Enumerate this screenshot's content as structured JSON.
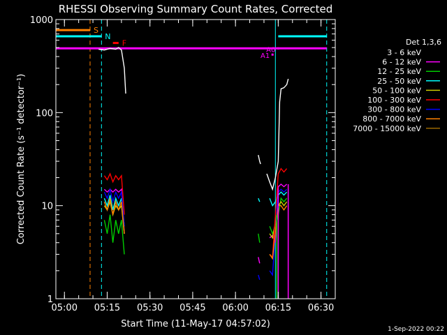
{
  "chart_data": {
    "type": "line",
    "title": "RHESSI Observing Summary Count Rates, Corrected",
    "xlabel": "Start Time (11-May-17 04:57:02)",
    "ylabel": "Corrected Count Rate (s⁻¹ detector⁻¹)",
    "yscale": "log",
    "xlim": [
      "04:57",
      "06:35"
    ],
    "ylim": [
      1,
      1000
    ],
    "x_ticks": [
      "05:00",
      "05:15",
      "05:30",
      "05:45",
      "06:00",
      "06:15",
      "06:30"
    ],
    "y_ticks": [
      "1",
      "10",
      "100",
      "1000"
    ],
    "footer": "1-Sep-2022 00:22",
    "legend": {
      "placement": "right",
      "title": "Det 1,3,6",
      "entries": [
        {
          "label": "3 - 6 keV",
          "color": "#000000"
        },
        {
          "label": "6 - 12 keV",
          "color": "#ff00ff"
        },
        {
          "label": "12 - 25 keV",
          "color": "#00cc00"
        },
        {
          "label": "25 - 50 keV",
          "color": "#00ffff"
        },
        {
          "label": "50 - 100 keV",
          "color": "#cccc00"
        },
        {
          "label": "100 - 300 keV",
          "color": "#ff0000"
        },
        {
          "label": "300 - 800 keV",
          "color": "#0000ff"
        },
        {
          "label": "800 - 7000 keV",
          "color": "#ff8000"
        },
        {
          "label": "7000 - 15000 keV",
          "color": "#996600"
        }
      ]
    },
    "state_bars": [
      {
        "label": "S",
        "color": "#ff8000",
        "start": "04:57",
        "end": "05:09",
        "level": 770
      },
      {
        "label": "N",
        "color": "#00ffff",
        "start": "04:57",
        "end": "05:13",
        "level": 660
      },
      {
        "label": "F",
        "color": "#ff0000",
        "start": "05:17",
        "end": "05:19",
        "level": 560
      },
      {
        "label": "",
        "color": "#00ffff",
        "start": "06:15",
        "end": "06:32",
        "level": 660
      }
    ],
    "attenuator_line": {
      "color": "#ff00ff",
      "start": "04:57",
      "end": "06:32",
      "level": 490
    },
    "markers": [
      {
        "label": "A1",
        "color": "#ff00ff",
        "time": "06:13",
        "level": 420
      },
      {
        "label": "A0",
        "color": "#ff00ff",
        "time": "06:15",
        "level": 490
      }
    ],
    "vlines": [
      {
        "time": "04:57",
        "color": "#00ffff",
        "style": "solid"
      },
      {
        "time": "05:09",
        "color": "#ff8000",
        "style": "dashed"
      },
      {
        "time": "05:13",
        "color": "#00ffff",
        "style": "dashed"
      },
      {
        "time": "06:14",
        "color": "#00ffff",
        "style": "solid"
      },
      {
        "time": "06:32",
        "color": "#00ffff",
        "style": "dashed"
      }
    ],
    "series": [
      {
        "name": "3 - 6 keV",
        "color": "#ffffffff",
        "segments": [
          [
            [
              "05:12",
              480
            ],
            [
              "05:14",
              470
            ],
            [
              "05:16",
              490
            ],
            [
              "05:18",
              480
            ],
            [
              "05:19",
              500
            ],
            [
              "05:20",
              470
            ],
            [
              "05:21",
              300
            ],
            [
              "05:21.5",
              160
            ]
          ],
          [
            [
              "06:08",
              35
            ],
            [
              "06:08.5",
              30
            ],
            [
              "06:08.8",
              28
            ]
          ],
          [
            [
              "06:11",
              22
            ],
            [
              "06:12",
              18
            ],
            [
              "06:13",
              15
            ],
            [
              "06:14",
              20
            ],
            [
              "06:15",
              30
            ],
            [
              "06:15.5",
              130
            ],
            [
              "06:16",
              180
            ],
            [
              "06:17",
              185
            ],
            [
              "06:18",
              200
            ],
            [
              "06:18.5",
              230
            ]
          ]
        ]
      },
      {
        "name": "6 - 12 keV",
        "color": "#ff00ff",
        "segments": [
          [
            [
              "05:14",
              15
            ],
            [
              "05:15",
              14
            ],
            [
              "05:16",
              15
            ],
            [
              "05:17",
              14
            ],
            [
              "05:18",
              15
            ],
            [
              "05:19",
              14
            ],
            [
              "05:20",
              15
            ],
            [
              "05:21",
              5
            ]
          ],
          [
            [
              "06:08",
              2.8
            ],
            [
              "06:08.5",
              2.4
            ]
          ],
          [
            [
              "06:12",
              4.5
            ],
            [
              "06:13",
              4.8
            ],
            [
              "06:14",
              4
            ],
            [
              "06:15",
              16
            ],
            [
              "06:16",
              17
            ],
            [
              "06:17",
              16
            ],
            [
              "06:18",
              17
            ]
          ]
        ]
      },
      {
        "name": "12 - 25 keV",
        "color": "#00cc00",
        "segments": [
          [
            [
              "05:14",
              7
            ],
            [
              "05:15",
              5
            ],
            [
              "05:16",
              8
            ],
            [
              "05:17",
              4
            ],
            [
              "05:18",
              7
            ],
            [
              "05:19",
              5
            ],
            [
              "05:20",
              7
            ],
            [
              "05:21",
              3
            ]
          ],
          [
            [
              "06:08",
              5
            ],
            [
              "06:08.5",
              4
            ]
          ],
          [
            [
              "06:12",
              6
            ],
            [
              "06:13",
              5
            ],
            [
              "06:14",
              6
            ],
            [
              "06:15",
              8
            ],
            [
              "06:16",
              12
            ],
            [
              "06:17",
              11
            ],
            [
              "06:18",
              12
            ]
          ]
        ]
      },
      {
        "name": "25 - 50 keV",
        "color": "#00ffff",
        "segments": [
          [
            [
              "05:14",
              12
            ],
            [
              "05:15",
              10
            ],
            [
              "05:16",
              13
            ],
            [
              "05:17",
              9
            ],
            [
              "05:18",
              12
            ],
            [
              "05:19",
              10
            ],
            [
              "05:20",
              12
            ],
            [
              "05:21",
              6
            ]
          ],
          [
            [
              "06:08",
              12
            ],
            [
              "06:08.5",
              11
            ]
          ],
          [
            [
              "06:12",
              12
            ],
            [
              "06:13",
              10
            ],
            [
              "06:14",
              11
            ],
            [
              "06:15",
              13
            ],
            [
              "06:16",
              14
            ],
            [
              "06:17",
              13
            ],
            [
              "06:18",
              14
            ]
          ]
        ]
      },
      {
        "name": "50 - 100 keV",
        "color": "#cccc00",
        "segments": [
          [
            [
              "05:14",
              10
            ],
            [
              "05:15",
              9
            ],
            [
              "05:16",
              11
            ],
            [
              "05:17",
              8
            ],
            [
              "05:18",
              10
            ],
            [
              "05:19",
              9
            ],
            [
              "05:20",
              10
            ],
            [
              "05:21",
              5
            ]
          ],
          [
            [
              "06:12",
              5
            ],
            [
              "06:13",
              4.5
            ],
            [
              "06:15",
              10
            ],
            [
              "06:16",
              11
            ],
            [
              "06:17",
              10
            ],
            [
              "06:18",
              11
            ]
          ]
        ]
      },
      {
        "name": "100 - 300 keV",
        "color": "#ff0000",
        "segments": [
          [
            [
              "05:14",
              21
            ],
            [
              "05:15",
              19
            ],
            [
              "05:16",
              22
            ],
            [
              "05:17",
              18
            ],
            [
              "05:18",
              21
            ],
            [
              "05:19",
              19
            ],
            [
              "05:20",
              21
            ],
            [
              "05:21",
              8
            ]
          ],
          [
            [
              "06:12",
              3
            ],
            [
              "06:13",
              2.8
            ],
            [
              "06:15",
              22
            ],
            [
              "06:16",
              25
            ],
            [
              "06:17",
              23
            ],
            [
              "06:18",
              25
            ]
          ]
        ]
      },
      {
        "name": "300 - 800 keV",
        "color": "#0000ff",
        "segments": [
          [
            [
              "05:14",
              14
            ],
            [
              "05:15",
              12
            ],
            [
              "05:16",
              15
            ],
            [
              "05:17",
              11
            ],
            [
              "05:18",
              14
            ],
            [
              "05:19",
              12
            ],
            [
              "05:20",
              14
            ],
            [
              "05:21",
              6
            ]
          ],
          [
            [
              "06:08",
              1.8
            ],
            [
              "06:08.5",
              1.6
            ]
          ],
          [
            [
              "06:12",
              2
            ],
            [
              "06:13",
              1.8
            ],
            [
              "06:15",
              14
            ],
            [
              "06:16",
              15
            ],
            [
              "06:17",
              14
            ],
            [
              "06:18",
              15
            ]
          ]
        ]
      },
      {
        "name": "800 - 7000 keV",
        "color": "#ff8000",
        "segments": [
          [
            [
              "05:14",
              11
            ],
            [
              "05:15",
              9
            ],
            [
              "05:16",
              12
            ],
            [
              "05:17",
              8
            ],
            [
              "05:18",
              11
            ],
            [
              "05:19",
              9
            ],
            [
              "05:20",
              11
            ],
            [
              "05:21",
              5
            ]
          ],
          [
            [
              "06:12",
              3
            ],
            [
              "06:13",
              2.7
            ],
            [
              "06:15",
              10
            ],
            [
              "06:16",
              10
            ],
            [
              "06:17",
              9
            ],
            [
              "06:18",
              10
            ]
          ]
        ]
      }
    ],
    "drops": [
      {
        "time": "06:15",
        "color": "#ff00ff",
        "from": 15,
        "to": 1
      },
      {
        "time": "06:14.5",
        "color": "#00cc00",
        "from": 8,
        "to": 1
      },
      {
        "time": "06:18.5",
        "color": "#ff00ff",
        "from": 17,
        "to": 1
      }
    ]
  }
}
